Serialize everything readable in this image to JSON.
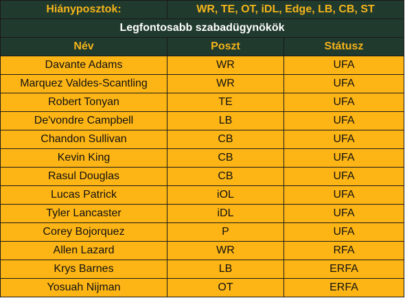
{
  "needs": {
    "label": "Hiányposztok:",
    "value": "WR, TE, OT, iDL, Edge, LB, CB, ST"
  },
  "section_title": "Legfontosabb szabadügynökök",
  "columns": {
    "name": "Név",
    "position": "Poszt",
    "status": "Státusz"
  },
  "players": [
    {
      "name": "Davante Adams",
      "position": "WR",
      "status": "UFA"
    },
    {
      "name": "Marquez Valdes-Scantling",
      "position": "WR",
      "status": "UFA"
    },
    {
      "name": "Robert Tonyan",
      "position": "TE",
      "status": "UFA"
    },
    {
      "name": "De'vondre Campbell",
      "position": "LB",
      "status": "UFA"
    },
    {
      "name": "Chandon Sullivan",
      "position": "CB",
      "status": "UFA"
    },
    {
      "name": "Kevin King",
      "position": "CB",
      "status": "UFA"
    },
    {
      "name": "Rasul Douglas",
      "position": "CB",
      "status": "UFA"
    },
    {
      "name": "Lucas Patrick",
      "position": "iOL",
      "status": "UFA"
    },
    {
      "name": "Tyler Lancaster",
      "position": "iDL",
      "status": "UFA"
    },
    {
      "name": "Corey Bojorquez",
      "position": "P",
      "status": "UFA"
    },
    {
      "name": "Allen Lazard",
      "position": "WR",
      "status": "RFA"
    },
    {
      "name": "Krys Barnes",
      "position": "LB",
      "status": "ERFA"
    },
    {
      "name": "Yosuah Nijman",
      "position": "OT",
      "status": "ERFA"
    }
  ],
  "colors": {
    "header_bg": "#203a2e",
    "header_text_gold": "#f5b41a",
    "header_text_white": "#ffffff",
    "row_bg": "#fdb515"
  }
}
